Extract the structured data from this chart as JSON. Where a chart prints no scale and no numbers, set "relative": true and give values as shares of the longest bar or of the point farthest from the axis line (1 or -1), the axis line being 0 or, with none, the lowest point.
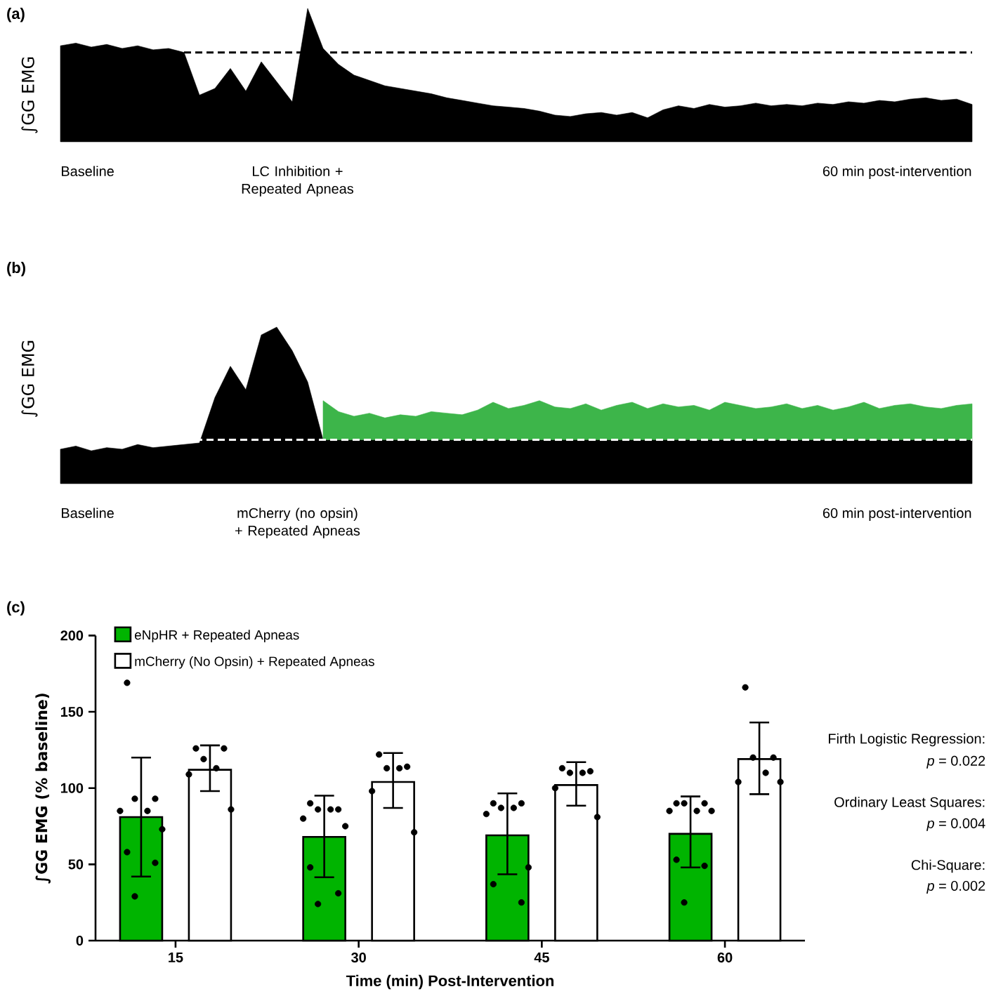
{
  "chart_data": [
    {
      "type": "area",
      "title": "(a)",
      "ylabel": "∫GG EMG",
      "relative": true,
      "categories": [
        null,
        null,
        null,
        null,
        null,
        null,
        null,
        null,
        null,
        null,
        null,
        null,
        null,
        null,
        null,
        null,
        null,
        null,
        null,
        null,
        null,
        null,
        null,
        null,
        null,
        null,
        null,
        null,
        null,
        null,
        null,
        null,
        null,
        null,
        null,
        null,
        null,
        null,
        null,
        null,
        null,
        null,
        null,
        null,
        null,
        null,
        null,
        null,
        null,
        null,
        null,
        null,
        null,
        null,
        null,
        null,
        null,
        null,
        null,
        null
      ],
      "series": [
        {
          "color": "#000000",
          "values": [
            0.72,
            0.74,
            0.71,
            0.73,
            0.7,
            0.72,
            0.69,
            0.7,
            0.67,
            0.35,
            0.4,
            0.55,
            0.38,
            0.6,
            0.45,
            0.3,
            1.0,
            0.7,
            0.58,
            0.5,
            0.46,
            0.42,
            0.4,
            0.38,
            0.36,
            0.33,
            0.31,
            0.29,
            0.27,
            0.26,
            0.25,
            0.23,
            0.2,
            0.19,
            0.21,
            0.22,
            0.2,
            0.22,
            0.18,
            0.24,
            0.27,
            0.25,
            0.28,
            0.26,
            0.27,
            0.29,
            0.27,
            0.28,
            0.27,
            0.29,
            0.28,
            0.3,
            0.29,
            0.31,
            0.3,
            0.32,
            0.33,
            0.31,
            0.32,
            0.28
          ]
        }
      ],
      "ref_lines": [
        {
          "axis": "y",
          "value": 0.67,
          "color": "#000000",
          "line_style": "dashed"
        }
      ],
      "annotations": [
        "Baseline",
        "LC Inhibition + Repeated Apneas",
        "60 min post-intervention"
      ]
    },
    {
      "type": "area",
      "title": "(b)",
      "ylabel": "∫GG EMG",
      "relative": true,
      "stacked": true,
      "categories": [
        null,
        null,
        null,
        null,
        null,
        null,
        null,
        null,
        null,
        null,
        null,
        null,
        null,
        null,
        null,
        null,
        null,
        null,
        null,
        null,
        null,
        null,
        null,
        null,
        null,
        null,
        null,
        null,
        null,
        null,
        null,
        null,
        null,
        null,
        null,
        null,
        null,
        null,
        null,
        null,
        null,
        null,
        null,
        null,
        null,
        null,
        null,
        null,
        null,
        null,
        null,
        null,
        null,
        null,
        null,
        null,
        null,
        null,
        null,
        null
      ],
      "series": [
        {
          "color": "#000000",
          "values": [
            0.22,
            0.24,
            0.21,
            0.23,
            0.22,
            0.25,
            0.23,
            0.24,
            0.25,
            0.26,
            0.55,
            0.75,
            0.6,
            0.95,
            1.0,
            0.85,
            0.65,
            0.28,
            0.28,
            0.28,
            0.28,
            0.28,
            0.28,
            0.28,
            0.28,
            0.28,
            0.28,
            0.28,
            0.28,
            0.28,
            0.28,
            0.28,
            0.28,
            0.28,
            0.28,
            0.28,
            0.28,
            0.28,
            0.28,
            0.28,
            0.28,
            0.28,
            0.28,
            0.28,
            0.28,
            0.28,
            0.28,
            0.28,
            0.28,
            0.28,
            0.28,
            0.28,
            0.28,
            0.28,
            0.28,
            0.28,
            0.28,
            0.28,
            0.28,
            0.28
          ]
        },
        {
          "color": "#3db54a",
          "values": [
            null,
            null,
            null,
            null,
            null,
            null,
            null,
            null,
            null,
            null,
            null,
            null,
            null,
            null,
            null,
            null,
            null,
            0.25,
            0.18,
            0.15,
            0.17,
            0.14,
            0.16,
            0.15,
            0.18,
            0.17,
            0.16,
            0.19,
            0.24,
            0.2,
            0.22,
            0.25,
            0.21,
            0.2,
            0.23,
            0.19,
            0.22,
            0.24,
            0.2,
            0.23,
            0.21,
            0.22,
            0.19,
            0.24,
            0.22,
            0.2,
            0.21,
            0.23,
            0.2,
            0.22,
            0.19,
            0.21,
            0.24,
            0.2,
            0.22,
            0.23,
            0.21,
            0.2,
            0.22,
            0.23
          ]
        }
      ],
      "ref_lines": [
        {
          "axis": "y",
          "value": 0.28,
          "color": "#ffffff",
          "line_style": "dashed"
        }
      ],
      "annotations": [
        "Baseline",
        "mCherry (no opsin) + Repeated Apneas",
        "60 min post-intervention"
      ]
    },
    {
      "type": "bar",
      "title": "(c)",
      "xlabel": "Time (min) Post-Intervention",
      "ylabel": "∫GG EMG (% baseline)",
      "categories": [
        "15",
        "30",
        "45",
        "60"
      ],
      "ylim": [
        0,
        200
      ],
      "yticks": [
        0,
        50,
        100,
        150,
        200
      ],
      "legend": "top left",
      "series": [
        {
          "name": "eNpHR + Repeated Apneas",
          "color": "#00b400",
          "values": [
            81,
            68,
            69,
            70
          ],
          "errors": [
            [
              42,
              120
            ],
            [
              41.5,
              95
            ],
            [
              43.5,
              96.5
            ],
            [
              48,
              94.5
            ]
          ]
        },
        {
          "name": "mCherry (No Opsin) + Repeated Apneas",
          "color": "#ffffff",
          "values": [
            112,
            104,
            102,
            119
          ],
          "errors": [
            [
              98,
              128
            ],
            [
              87,
              123
            ],
            [
              88.5,
              117
            ],
            [
              96,
              143
            ]
          ]
        },
        {
          "type": "scatter",
          "marker": "circle",
          "color": "#000000",
          "x": [
            "15",
            "15",
            "15",
            "15",
            "15",
            "15",
            "15",
            "15",
            "15",
            "30",
            "30",
            "30",
            "30",
            "30",
            "30",
            "30",
            "30",
            "30",
            "45",
            "45",
            "45",
            "45",
            "45",
            "45",
            "45",
            "45",
            "60",
            "60",
            "60",
            "60",
            "60",
            "60",
            "60",
            "60",
            "60"
          ],
          "values": [
            169,
            93,
            93,
            85,
            85,
            73,
            58,
            51,
            29,
            90,
            86,
            86,
            86,
            80,
            75,
            48,
            31,
            24,
            90,
            90,
            87,
            87,
            83,
            48,
            37,
            25,
            90,
            90,
            90,
            85,
            85,
            85,
            53,
            49,
            25
          ]
        },
        {
          "type": "scatter",
          "marker": "circle",
          "color": "#000000",
          "x": [
            "15",
            "15",
            "15",
            "15",
            "15",
            "15",
            "30",
            "30",
            "30",
            "30",
            "30",
            "30",
            "45",
            "45",
            "45",
            "45",
            "45",
            "45",
            "60",
            "60",
            "60",
            "60",
            "60",
            "60"
          ],
          "values": [
            126,
            126,
            119,
            113,
            109,
            86,
            122,
            114,
            113,
            113,
            98,
            71,
            113,
            111,
            110,
            110,
            100,
            81,
            166,
            120,
            120,
            110,
            104,
            104
          ]
        }
      ],
      "annotations": [
        "Firth Logistic Regression:",
        "*p* = 0.022",
        "Ordinary Least Squares:",
        "*p* = 0.004",
        "Chi-Square:",
        "*p* = 0.002"
      ]
    }
  ]
}
